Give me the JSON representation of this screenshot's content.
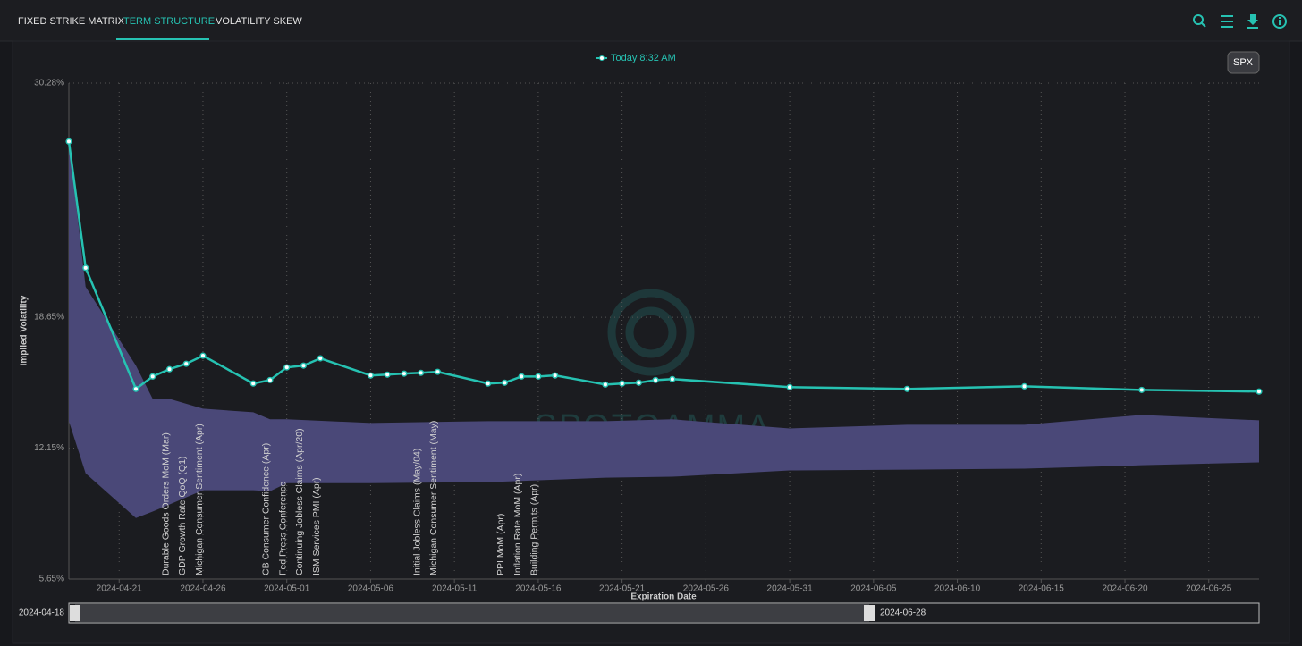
{
  "tabs": [
    "FIXED STRIKE MATRIX",
    "TERM STRUCTURE",
    "VOLATILITY SKEW"
  ],
  "active_tab": 1,
  "symbol_button": "SPX",
  "watermark": "SPOTGAMMA",
  "chart_data": {
    "type": "line",
    "y_label": "Implied Volatility",
    "x_label": "Expiration Date",
    "xlim": [
      "2024-04-18",
      "2024-06-28"
    ],
    "ylim": [
      5.65,
      30.28
    ],
    "yticks": [
      {
        "value": 5.65,
        "label": "5.65%"
      },
      {
        "value": 12.15,
        "label": "12.15%"
      },
      {
        "value": 18.65,
        "label": "18.65%"
      },
      {
        "value": 30.28,
        "label": "30.28%"
      }
    ],
    "xticks": [
      "2024-04-21",
      "2024-04-26",
      "2024-05-01",
      "2024-05-06",
      "2024-05-11",
      "2024-05-16",
      "2024-05-21",
      "2024-05-26",
      "2024-05-31",
      "2024-06-05",
      "2024-06-10",
      "2024-06-15",
      "2024-06-20",
      "2024-06-25"
    ],
    "grid": true,
    "x": [
      "2024-04-18",
      "2024-04-19",
      "2024-04-22",
      "2024-04-23",
      "2024-04-24",
      "2024-04-25",
      "2024-04-26",
      "2024-04-29",
      "2024-04-30",
      "2024-05-01",
      "2024-05-02",
      "2024-05-03",
      "2024-05-06",
      "2024-05-07",
      "2024-05-08",
      "2024-05-09",
      "2024-05-10",
      "2024-05-13",
      "2024-05-14",
      "2024-05-15",
      "2024-05-16",
      "2024-05-17",
      "2024-05-20",
      "2024-05-21",
      "2024-05-22",
      "2024-05-23",
      "2024-05-24",
      "2024-05-31",
      "2024-06-07",
      "2024-06-14",
      "2024-06-21",
      "2024-06-28"
    ],
    "series": [
      {
        "name": "Today 8:32 AM",
        "color": "#26c2b2",
        "values": [
          27.38,
          21.1,
          15.09,
          15.71,
          16.07,
          16.34,
          16.74,
          15.36,
          15.53,
          16.16,
          16.25,
          16.61,
          15.76,
          15.8,
          15.85,
          15.89,
          15.94,
          15.36,
          15.4,
          15.71,
          15.71,
          15.76,
          15.31,
          15.36,
          15.4,
          15.53,
          15.58,
          15.18,
          15.09,
          15.22,
          15.04,
          14.96
        ]
      }
    ],
    "band": {
      "color": "#4a4878",
      "x": [
        "2024-04-18",
        "2024-04-19",
        "2024-04-22",
        "2024-04-23",
        "2024-04-24",
        "2024-04-26",
        "2024-04-29",
        "2024-04-30",
        "2024-05-01",
        "2024-05-06",
        "2024-05-13",
        "2024-05-20",
        "2024-05-24",
        "2024-05-31",
        "2024-06-07",
        "2024-06-14",
        "2024-06-21",
        "2024-06-28"
      ],
      "upper": [
        27.38,
        20.16,
        16.25,
        14.6,
        14.6,
        14.11,
        13.93,
        13.58,
        13.58,
        13.4,
        13.49,
        13.49,
        13.58,
        13.13,
        13.31,
        13.31,
        13.8,
        13.53
      ],
      "lower": [
        13.49,
        10.9,
        8.68,
        9.0,
        9.35,
        10.06,
        10.06,
        10.01,
        10.41,
        10.41,
        10.46,
        10.68,
        10.73,
        11.04,
        11.08,
        11.13,
        11.3,
        11.44
      ]
    },
    "annotations": [
      {
        "x": "2024-04-24",
        "text": "Durable Goods Orders MoM (Mar)"
      },
      {
        "x": "2024-04-25",
        "text": "GDP Growth Rate QoQ (Q1)"
      },
      {
        "x": "2024-04-26",
        "text": "Michigan Consumer Sentiment (Apr)"
      },
      {
        "x": "2024-04-30",
        "text": "CB Consumer Confidence (Apr)"
      },
      {
        "x": "2024-05-01",
        "text": "Fed Press Conference"
      },
      {
        "x": "2024-05-02",
        "text": "Continuing Jobless Claims (Apr/20)"
      },
      {
        "x": "2024-05-03",
        "text": "ISM Services PMI (Apr)"
      },
      {
        "x": "2024-05-09",
        "text": "Initial Jobless Claims (May/04)"
      },
      {
        "x": "2024-05-10",
        "text": "Michigan Consumer Sentiment (May)"
      },
      {
        "x": "2024-05-14",
        "text": "PPI MoM (Apr)"
      },
      {
        "x": "2024-05-15",
        "text": "Inflation Rate MoM (Apr)"
      },
      {
        "x": "2024-05-16",
        "text": "Building Permits (Apr)"
      }
    ],
    "range_slider": {
      "start": "2024-04-18",
      "end": "2024-06-28"
    }
  }
}
